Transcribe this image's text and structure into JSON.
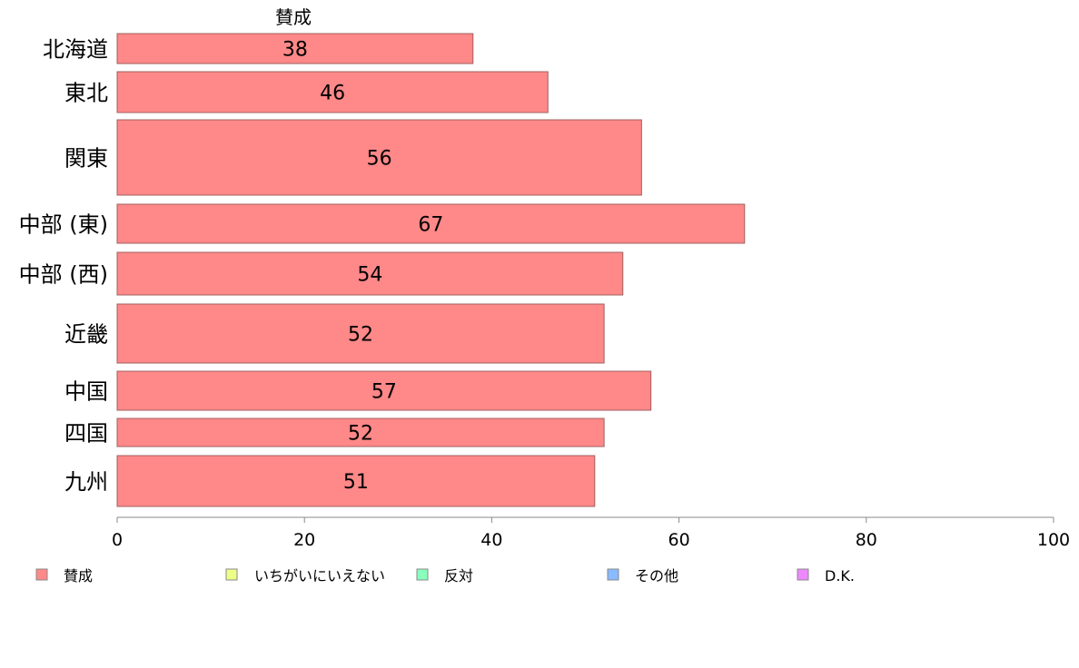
{
  "chart_data": {
    "type": "bar",
    "orientation": "horizontal",
    "series_title": "賛成",
    "categories": [
      "北海道",
      "東北",
      "関東",
      "中部 (東)",
      "中部 (西)",
      "近畿",
      "中国",
      "四国",
      "九州"
    ],
    "series": [
      {
        "name": "賛成",
        "values": [
          38,
          46,
          56,
          67,
          54,
          52,
          57,
          52,
          51
        ],
        "color": "#ff8888"
      }
    ],
    "xlim": [
      0,
      100
    ],
    "xticks": [
      "0",
      "20",
      "40",
      "60",
      "80",
      "100"
    ],
    "legend": [
      {
        "label": "賛成",
        "color": "#ff8888"
      },
      {
        "label": "いちがいにいえない",
        "color": "#eeff88"
      },
      {
        "label": "反対",
        "color": "#88ffbb"
      },
      {
        "label": "その他",
        "color": "#88bbff"
      },
      {
        "label": "D.K.",
        "color": "#ee88ff"
      }
    ],
    "legend_position": "bottom",
    "grid": false
  }
}
